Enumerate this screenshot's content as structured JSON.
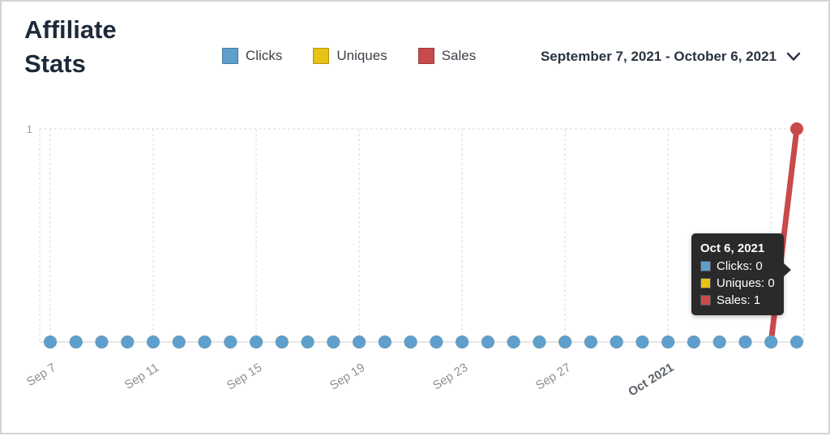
{
  "header": {
    "title": "Affiliate Stats",
    "date_range": "September 7, 2021 - October 6, 2021",
    "legend": [
      {
        "label": "Clicks",
        "color": "#5f9fcd"
      },
      {
        "label": "Uniques",
        "color": "#e9c216"
      },
      {
        "label": "Sales",
        "color": "#c94a4b"
      }
    ]
  },
  "chart_data": {
    "type": "line",
    "title": "Affiliate Stats",
    "x_range": [
      "September 7, 2021",
      "October 6, 2021"
    ],
    "n_days": 30,
    "ylim": [
      0,
      1
    ],
    "grid": true,
    "legend_position": "top",
    "y_ticks": [
      {
        "value": 1,
        "label": "1"
      }
    ],
    "x_ticks": [
      {
        "index": 0,
        "label": "Sep 7",
        "bold": false
      },
      {
        "index": 4,
        "label": "Sep 11",
        "bold": false
      },
      {
        "index": 8,
        "label": "Sep 15",
        "bold": false
      },
      {
        "index": 12,
        "label": "Sep 19",
        "bold": false
      },
      {
        "index": 16,
        "label": "Sep 23",
        "bold": false
      },
      {
        "index": 20,
        "label": "Sep 27",
        "bold": false
      },
      {
        "index": 24,
        "label": "Oct 2021",
        "bold": true
      },
      {
        "index": 28,
        "label": "",
        "bold": false
      }
    ],
    "series": [
      {
        "name": "Clicks",
        "color": "#5f9fcd",
        "values": [
          0,
          0,
          0,
          0,
          0,
          0,
          0,
          0,
          0,
          0,
          0,
          0,
          0,
          0,
          0,
          0,
          0,
          0,
          0,
          0,
          0,
          0,
          0,
          0,
          0,
          0,
          0,
          0,
          0,
          0
        ]
      },
      {
        "name": "Uniques",
        "color": "#e9c216",
        "values": [
          0,
          0,
          0,
          0,
          0,
          0,
          0,
          0,
          0,
          0,
          0,
          0,
          0,
          0,
          0,
          0,
          0,
          0,
          0,
          0,
          0,
          0,
          0,
          0,
          0,
          0,
          0,
          0,
          0,
          0
        ]
      },
      {
        "name": "Sales",
        "color": "#c94a4b",
        "values": [
          0,
          0,
          0,
          0,
          0,
          0,
          0,
          0,
          0,
          0,
          0,
          0,
          0,
          0,
          0,
          0,
          0,
          0,
          0,
          0,
          0,
          0,
          0,
          0,
          0,
          0,
          0,
          0,
          0,
          1
        ]
      }
    ]
  },
  "tooltip": {
    "title": "Oct 6, 2021",
    "rows": [
      {
        "label": "Clicks",
        "value": 0,
        "text": "Clicks: 0",
        "color": "#5f9fcd"
      },
      {
        "label": "Uniques",
        "value": 0,
        "text": "Uniques: 0",
        "color": "#e9c216"
      },
      {
        "label": "Sales",
        "value": 1,
        "text": "Sales: 1",
        "color": "#c94a4b"
      }
    ]
  }
}
